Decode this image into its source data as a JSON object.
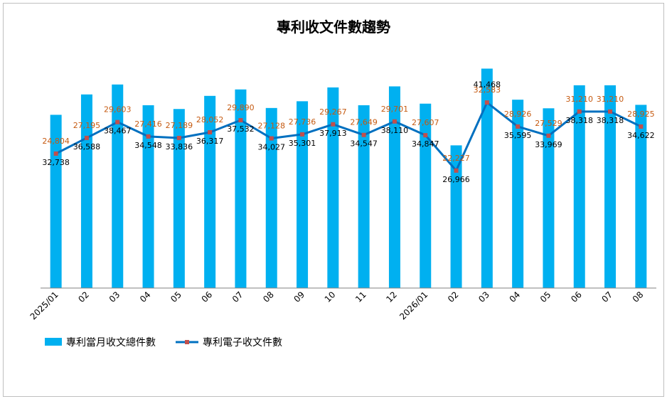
{
  "chart_data": {
    "type": "bar",
    "title": "專利收文件數趨勢",
    "categories": [
      "2025/01",
      "02",
      "03",
      "04",
      "05",
      "06",
      "07",
      "08",
      "09",
      "10",
      "11",
      "12",
      "2026/01",
      "02",
      "03",
      "04",
      "05",
      "06",
      "07",
      "08"
    ],
    "series": [
      {
        "name": "專利當月收文總件數",
        "type": "bar",
        "color": "#00b0f0",
        "values": [
          32738,
          36588,
          38467,
          34548,
          33836,
          36317,
          37532,
          34027,
          35301,
          37913,
          34547,
          38110,
          34847,
          26966,
          41468,
          35595,
          33969,
          38318,
          38318,
          34622
        ]
      },
      {
        "name": "專利電子收文件數",
        "type": "line",
        "color": "#0070c0",
        "marker_color": "#c0504d",
        "values": [
          24804,
          27195,
          29603,
          27416,
          27189,
          28052,
          29890,
          27128,
          27736,
          29267,
          27649,
          29701,
          27607,
          22227,
          32583,
          28926,
          27529,
          31210,
          31210,
          28925
        ]
      }
    ],
    "bar_labels": [
      "32,738",
      "36,588",
      "38,467",
      "34,548",
      "33,836",
      "36,317",
      "37,532",
      "34,027",
      "35,301",
      "37,913",
      "34,547",
      "38,110",
      "34,847",
      "26,966",
      "41,468",
      "35,595",
      "33,969",
      "38,318",
      "38,318",
      "34,622"
    ],
    "line_labels": [
      "24,804",
      "27,195",
      "29,603",
      "27,416",
      "27,189",
      "28,052",
      "29,890",
      "27,128",
      "27,736",
      "29,267",
      "27,649",
      "29,701",
      "27,607",
      "22,227",
      "32,583",
      "28,926",
      "27,529",
      "31,210",
      "31,210",
      "28,925"
    ],
    "legend": "bottom-left",
    "grid": false
  }
}
